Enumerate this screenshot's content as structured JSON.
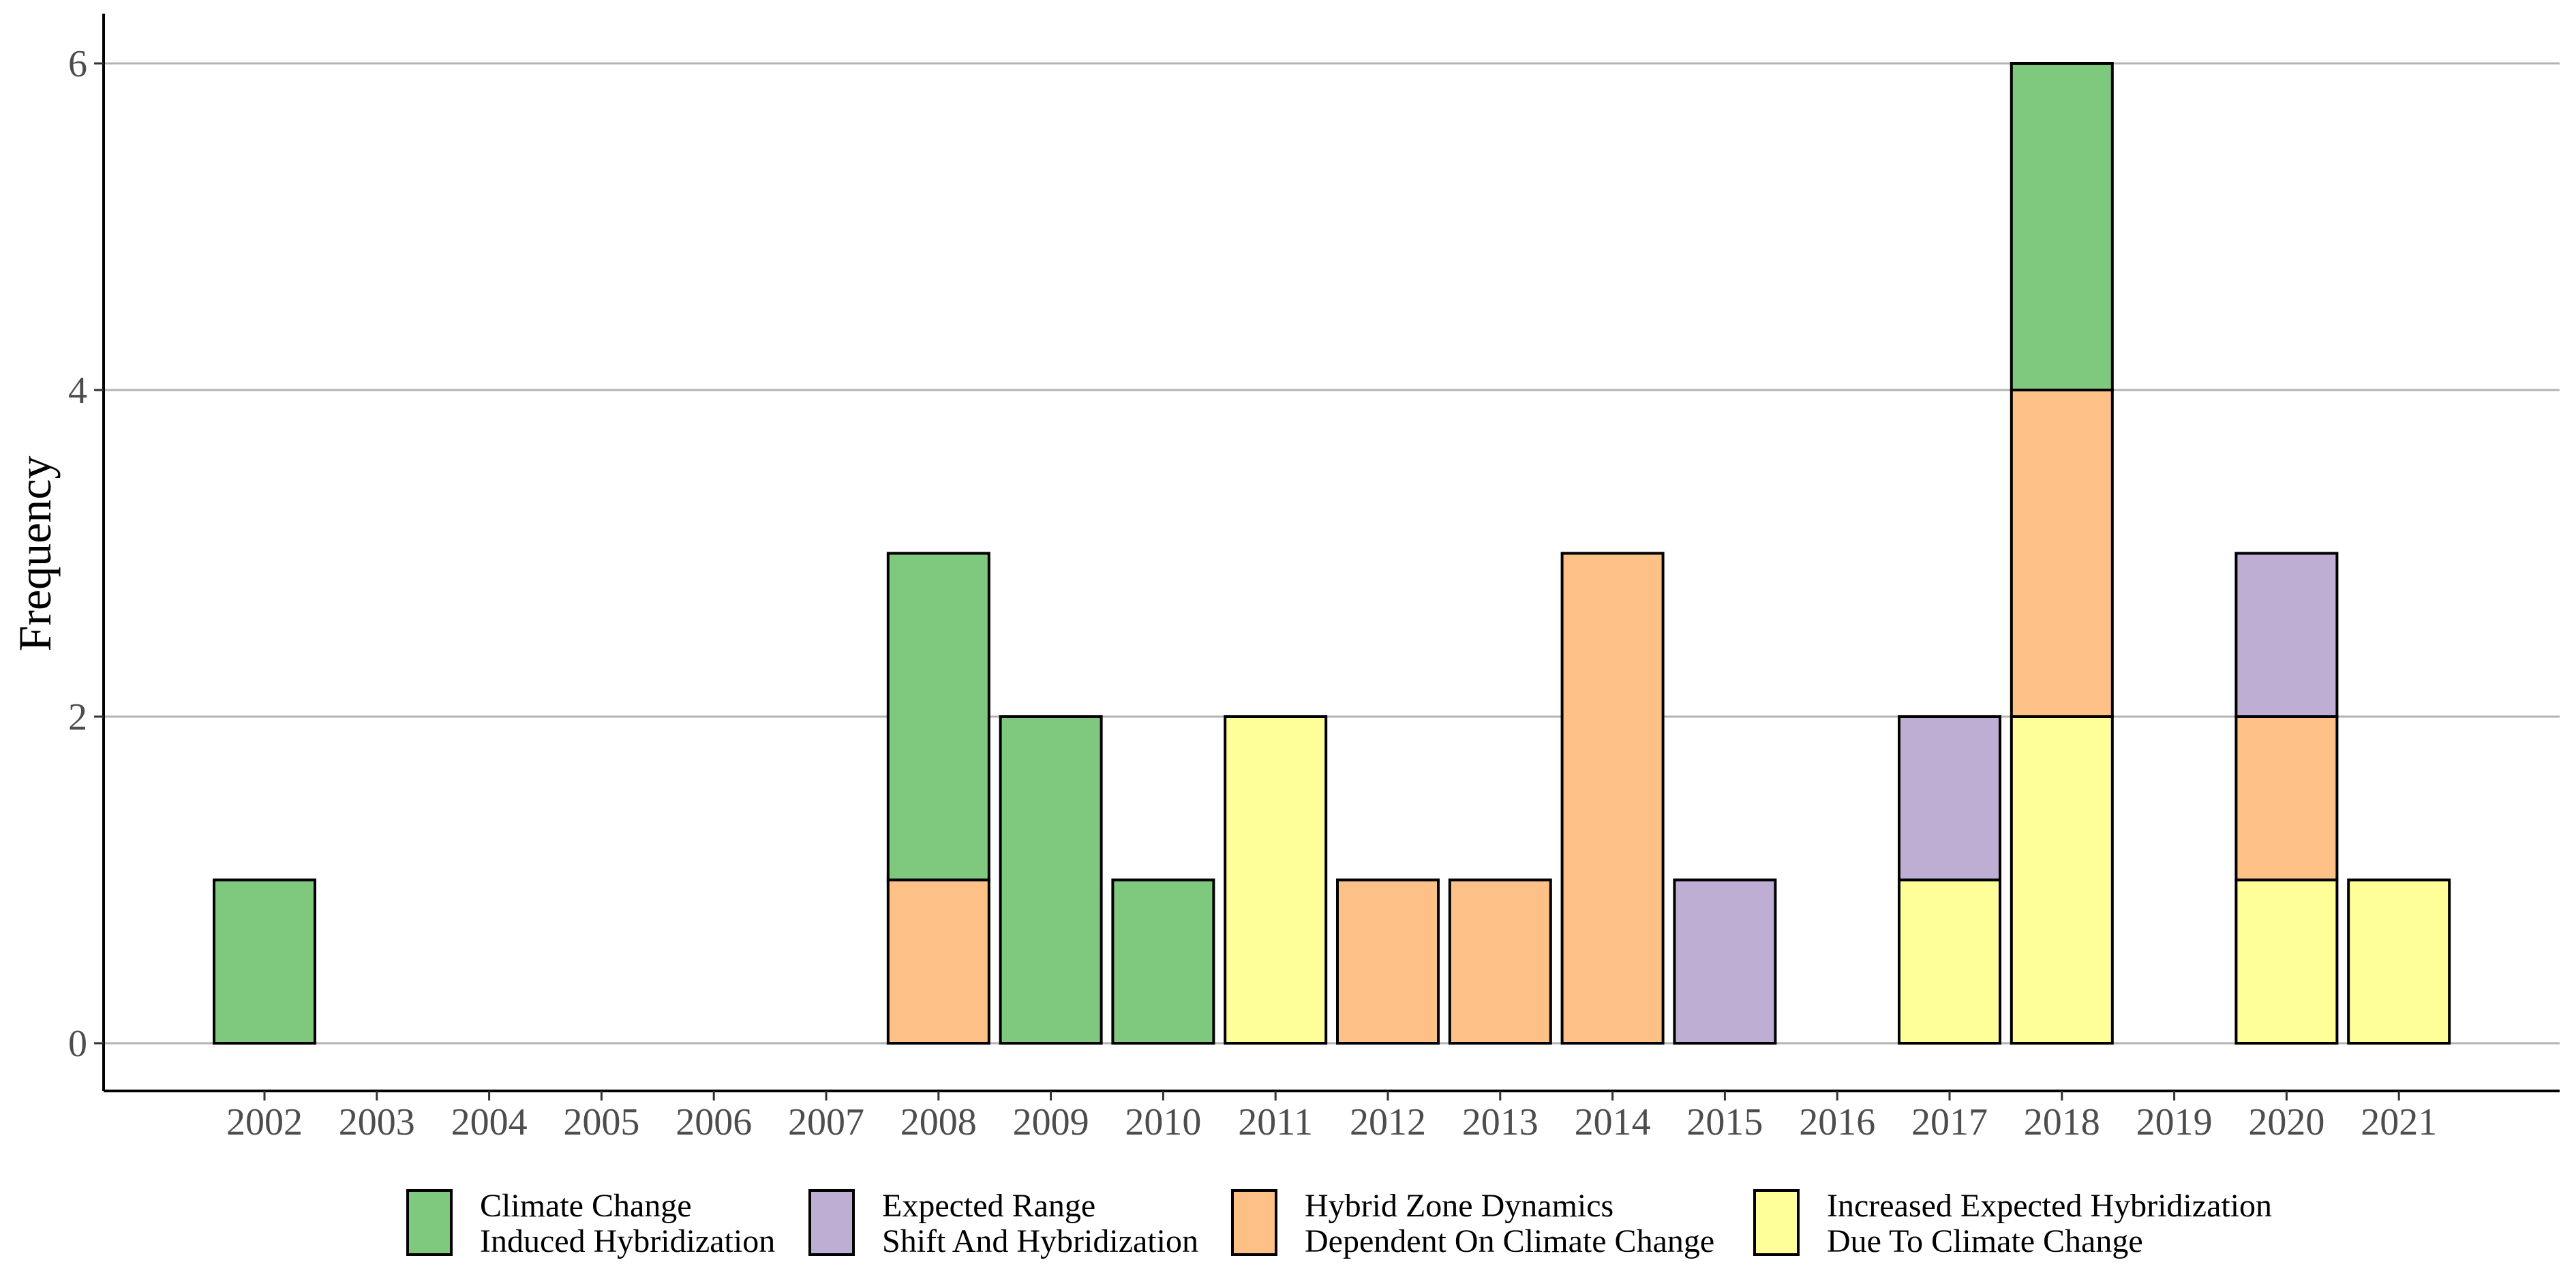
{
  "chart_data": {
    "type": "bar",
    "stacked": true,
    "title": "",
    "xlabel": "",
    "ylabel": "Frequency",
    "ylim": [
      0,
      6.3
    ],
    "yticks": [
      0,
      2,
      4,
      6
    ],
    "grid": {
      "horizontal": true,
      "vertical": false
    },
    "legend_position": "bottom",
    "categories": [
      "2002",
      "2003",
      "2004",
      "2005",
      "2006",
      "2007",
      "2008",
      "2009",
      "2010",
      "2011",
      "2012",
      "2013",
      "2014",
      "2015",
      "2016",
      "2017",
      "2018",
      "2019",
      "2020",
      "2021"
    ],
    "series": [
      {
        "name": "Increased Expected Hybridization Due To Climate Change",
        "legend_lines": [
          "Increased Expected Hybridization",
          "Due To Climate Change"
        ],
        "color": "#FFFF99",
        "values": [
          0,
          0,
          0,
          0,
          0,
          0,
          0,
          0,
          0,
          2,
          0,
          0,
          0,
          0,
          0,
          1,
          2,
          0,
          1,
          1
        ]
      },
      {
        "name": "Hybrid Zone Dynamics Dependent On Climate Change",
        "legend_lines": [
          "Hybrid Zone Dynamics",
          "Dependent On Climate Change"
        ],
        "color": "#FDC086",
        "values": [
          0,
          0,
          0,
          0,
          0,
          0,
          1,
          0,
          0,
          0,
          1,
          1,
          3,
          0,
          0,
          0,
          2,
          0,
          1,
          0
        ]
      },
      {
        "name": "Expected Range Shift And Hybridization",
        "legend_lines": [
          "Expected Range",
          "Shift And Hybridization"
        ],
        "color": "#BEAED4",
        "values": [
          0,
          0,
          0,
          0,
          0,
          0,
          0,
          0,
          0,
          0,
          0,
          0,
          0,
          1,
          0,
          1,
          0,
          0,
          1,
          0
        ]
      },
      {
        "name": "Climate Change Induced Hybridization",
        "legend_lines": [
          "Climate Change",
          "Induced Hybridization"
        ],
        "color": "#7FC97F",
        "values": [
          1,
          0,
          0,
          0,
          0,
          0,
          2,
          2,
          1,
          0,
          0,
          0,
          0,
          0,
          0,
          0,
          2,
          0,
          0,
          0
        ]
      }
    ],
    "legend_order": [
      3,
      2,
      1,
      0
    ],
    "colors": {
      "grid": "#b3b3b3",
      "axis": "#000000",
      "bar_outline": "#000000",
      "tick_text": "#4d4d4d"
    }
  }
}
